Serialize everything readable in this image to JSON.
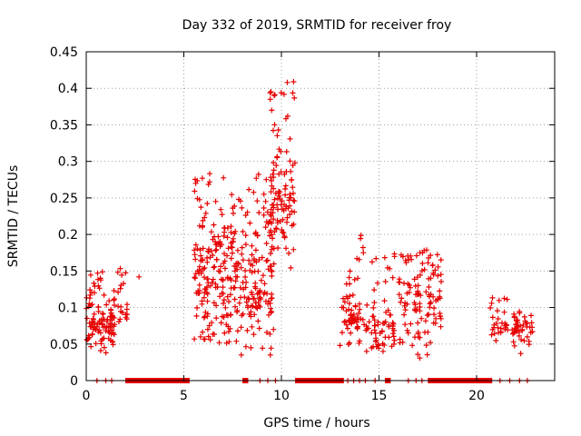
{
  "chart_data": {
    "type": "scatter",
    "title": "Day 332 of 2019, SRMTID for receiver froy",
    "xlabel": "GPS time / hours",
    "ylabel": "SRMTID / TECUs",
    "xlim": [
      0,
      24
    ],
    "ylim": [
      0,
      0.45
    ],
    "grid": true,
    "x_ticks": [
      0,
      5,
      10,
      15,
      20
    ],
    "y_ticks": [
      0,
      0.05,
      0.1,
      0.15,
      0.2,
      0.25,
      0.3,
      0.35,
      0.4,
      0.45
    ],
    "x_tick_labels": [
      "0",
      "5",
      "10",
      "15",
      "20"
    ],
    "y_tick_labels": [
      "0",
      "0.05",
      "0.1",
      "0.15",
      "0.2",
      "0.25",
      "0.3",
      "0.35",
      "0.4",
      "0.45"
    ],
    "marker": "+",
    "color": "#e60000",
    "series": [
      {
        "name": "SRMTID",
        "clusters": [
          {
            "x_range": [
              0.0,
              1.5
            ],
            "y_range": [
              0.035,
              0.15
            ],
            "center": 0.075,
            "count": 110
          },
          {
            "x_range": [
              1.6,
              2.1
            ],
            "y_range": [
              0.07,
              0.16
            ],
            "center": 0.1,
            "count": 20
          },
          {
            "x_range": [
              5.5,
              9.6
            ],
            "y_range": [
              0.035,
              0.285
            ],
            "center": 0.13,
            "count": 340
          },
          {
            "x_range": [
              9.4,
              10.7
            ],
            "y_range": [
              0.15,
              0.41
            ],
            "center": 0.24,
            "count": 110
          },
          {
            "x_range": [
              13.1,
              14.5
            ],
            "y_range": [
              0.04,
              0.2
            ],
            "center": 0.08,
            "count": 70
          },
          {
            "x_range": [
              14.6,
              15.8
            ],
            "y_range": [
              0.04,
              0.175
            ],
            "center": 0.07,
            "count": 60
          },
          {
            "x_range": [
              16.0,
              18.2
            ],
            "y_range": [
              0.03,
              0.19
            ],
            "center": 0.1,
            "count": 120
          },
          {
            "x_range": [
              20.7,
              21.6
            ],
            "y_range": [
              0.05,
              0.12
            ],
            "center": 0.07,
            "count": 30
          },
          {
            "x_range": [
              21.8,
              22.9
            ],
            "y_range": [
              0.03,
              0.095
            ],
            "center": 0.065,
            "count": 45
          }
        ],
        "isolated_points": [
          {
            "x": 2.7,
            "y": 0.142
          },
          {
            "x": 0.1,
            "y": 0.057
          },
          {
            "x": 10.3,
            "y": 0.408
          },
          {
            "x": 9.5,
            "y": 0.37
          },
          {
            "x": 14.2,
            "y": 0.175
          },
          {
            "x": 13.0,
            "y": 0.048
          }
        ],
        "zero_baseline_ranges": [
          [
            2.0,
            5.3
          ],
          [
            8.0,
            8.3
          ],
          [
            10.7,
            13.2
          ],
          [
            15.3,
            15.6
          ],
          [
            17.5,
            20.8
          ]
        ]
      }
    ]
  }
}
